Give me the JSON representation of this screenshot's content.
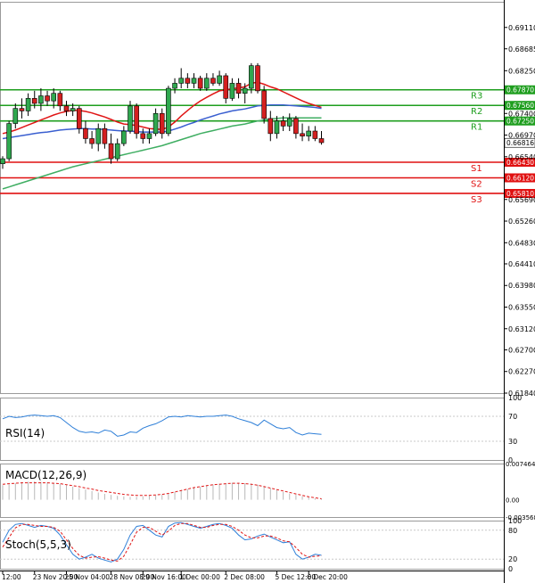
{
  "chart_data": [
    {
      "name": "price",
      "type": "candlestick",
      "ylim": [
        0.6184,
        0.6962
      ],
      "y_ticks": [
        0.6911,
        0.68685,
        0.6825,
        0.674,
        0.6697,
        0.6654,
        0.6569,
        0.6526,
        0.6483,
        0.6441,
        0.6398,
        0.6355,
        0.6312,
        0.627,
        0.6227,
        0.6184
      ],
      "y_tick_labels": [
        "0.69110",
        "0.68685",
        "0.68250",
        "0.67400",
        "0.66970",
        "0.66540",
        "0.65690",
        "0.65260",
        "0.64830",
        "0.64410",
        "0.63980",
        "0.63550",
        "0.63120",
        "0.62700",
        "0.62270",
        "0.61840"
      ],
      "current_price": 0.66816,
      "current_price_label": "0.66816",
      "levels": [
        {
          "name": "R3",
          "value": 0.6787,
          "label": "0.67870",
          "color": "#1e9e1e"
        },
        {
          "name": "R2",
          "value": 0.6756,
          "label": "0.67560",
          "color": "#1e9e1e"
        },
        {
          "name": "R1",
          "value": 0.6725,
          "label": "0.67250",
          "color": "#1e9e1e"
        },
        {
          "name": "S1",
          "value": 0.6643,
          "label": "0.66430",
          "color": "#e01010"
        },
        {
          "name": "S2",
          "value": 0.6612,
          "label": "0.66120",
          "color": "#e01010"
        },
        {
          "name": "S3",
          "value": 0.6581,
          "label": "0.65810",
          "color": "#e01010"
        }
      ],
      "candles": [
        [
          0.664,
          0.6655,
          0.663,
          0.665
        ],
        [
          0.665,
          0.6725,
          0.6645,
          0.672
        ],
        [
          0.672,
          0.676,
          0.671,
          0.675
        ],
        [
          0.675,
          0.677,
          0.673,
          0.6745
        ],
        [
          0.6745,
          0.678,
          0.6735,
          0.677
        ],
        [
          0.677,
          0.6785,
          0.675,
          0.676
        ],
        [
          0.676,
          0.679,
          0.6745,
          0.6775
        ],
        [
          0.6775,
          0.6785,
          0.6755,
          0.6765
        ],
        [
          0.6765,
          0.679,
          0.675,
          0.678
        ],
        [
          0.678,
          0.6785,
          0.6745,
          0.6755
        ],
        [
          0.6755,
          0.6765,
          0.6735,
          0.6745
        ],
        [
          0.6745,
          0.676,
          0.6735,
          0.675
        ],
        [
          0.675,
          0.6755,
          0.67,
          0.671
        ],
        [
          0.671,
          0.6725,
          0.668,
          0.669
        ],
        [
          0.669,
          0.6705,
          0.667,
          0.668
        ],
        [
          0.668,
          0.672,
          0.6665,
          0.671
        ],
        [
          0.671,
          0.672,
          0.667,
          0.668
        ],
        [
          0.668,
          0.67,
          0.664,
          0.665
        ],
        [
          0.665,
          0.669,
          0.6645,
          0.668
        ],
        [
          0.668,
          0.6715,
          0.6675,
          0.6705
        ],
        [
          0.6705,
          0.6765,
          0.67,
          0.6755
        ],
        [
          0.6755,
          0.676,
          0.669,
          0.67
        ],
        [
          0.67,
          0.671,
          0.668,
          0.669
        ],
        [
          0.669,
          0.671,
          0.668,
          0.67
        ],
        [
          0.67,
          0.675,
          0.6695,
          0.674
        ],
        [
          0.674,
          0.675,
          0.669,
          0.67
        ],
        [
          0.67,
          0.6795,
          0.6695,
          0.679
        ],
        [
          0.679,
          0.681,
          0.678,
          0.68
        ],
        [
          0.68,
          0.683,
          0.679,
          0.681
        ],
        [
          0.681,
          0.682,
          0.679,
          0.68
        ],
        [
          0.68,
          0.682,
          0.679,
          0.681
        ],
        [
          0.681,
          0.6815,
          0.6785,
          0.679
        ],
        [
          0.679,
          0.682,
          0.6785,
          0.681
        ],
        [
          0.681,
          0.682,
          0.6795,
          0.68
        ],
        [
          0.68,
          0.6825,
          0.6795,
          0.6815
        ],
        [
          0.6815,
          0.682,
          0.676,
          0.677
        ],
        [
          0.677,
          0.681,
          0.6765,
          0.68
        ],
        [
          0.68,
          0.681,
          0.677,
          0.678
        ],
        [
          0.678,
          0.68,
          0.676,
          0.679
        ],
        [
          0.679,
          0.684,
          0.678,
          0.6835
        ],
        [
          0.6835,
          0.684,
          0.678,
          0.6785
        ],
        [
          0.6785,
          0.6795,
          0.672,
          0.673
        ],
        [
          0.673,
          0.6745,
          0.6685,
          0.67
        ],
        [
          0.67,
          0.6735,
          0.669,
          0.6725
        ],
        [
          0.6725,
          0.6735,
          0.6705,
          0.6715
        ],
        [
          0.6715,
          0.674,
          0.6705,
          0.673
        ],
        [
          0.673,
          0.6735,
          0.669,
          0.67
        ],
        [
          0.67,
          0.672,
          0.6685,
          0.6695
        ],
        [
          0.6695,
          0.6715,
          0.6685,
          0.6705
        ],
        [
          0.6705,
          0.6715,
          0.6685,
          0.669
        ],
        [
          0.669,
          0.6705,
          0.6678,
          0.6682
        ]
      ],
      "moving_averages": [
        {
          "name": "MA red",
          "color": "#e01515",
          "values": [
            0.67,
            0.6703,
            0.6707,
            0.6712,
            0.6717,
            0.6722,
            0.6727,
            0.6732,
            0.6737,
            0.6741,
            0.6744,
            0.6746,
            0.6746,
            0.6744,
            0.6741,
            0.6737,
            0.6733,
            0.6728,
            0.6723,
            0.6719,
            0.6718,
            0.6716,
            0.6713,
            0.671,
            0.6709,
            0.6708,
            0.6713,
            0.6723,
            0.6735,
            0.6746,
            0.6756,
            0.6765,
            0.6772,
            0.6779,
            0.6785,
            0.6787,
            0.6789,
            0.6791,
            0.6793,
            0.68,
            0.6802,
            0.6798,
            0.6793,
            0.6789,
            0.6783,
            0.6777,
            0.6771,
            0.6765,
            0.676,
            0.6756,
            0.6752
          ]
        },
        {
          "name": "MA blue",
          "color": "#3a5fd0",
          "values": [
            0.669,
            0.6692,
            0.6694,
            0.6696,
            0.6698,
            0.67,
            0.6702,
            0.6703,
            0.6705,
            0.6707,
            0.6708,
            0.6709,
            0.671,
            0.671,
            0.6709,
            0.6709,
            0.6708,
            0.6707,
            0.6706,
            0.6705,
            0.6705,
            0.6704,
            0.6703,
            0.6703,
            0.6703,
            0.6703,
            0.6705,
            0.6709,
            0.6713,
            0.6718,
            0.6722,
            0.6727,
            0.6731,
            0.6735,
            0.6739,
            0.6742,
            0.6745,
            0.6747,
            0.6749,
            0.6752,
            0.6755,
            0.6756,
            0.6757,
            0.6757,
            0.6757,
            0.6756,
            0.6755,
            0.6754,
            0.6753,
            0.6752,
            0.675
          ]
        },
        {
          "name": "MA green",
          "color": "#3fae62",
          "values": [
            0.659,
            0.6594,
            0.6598,
            0.6602,
            0.6606,
            0.661,
            0.6614,
            0.6618,
            0.6622,
            0.6626,
            0.663,
            0.6634,
            0.6637,
            0.664,
            0.6643,
            0.6646,
            0.6649,
            0.6652,
            0.6655,
            0.6658,
            0.6661,
            0.6664,
            0.6667,
            0.667,
            0.6673,
            0.6676,
            0.668,
            0.6684,
            0.6688,
            0.6692,
            0.6696,
            0.67,
            0.6703,
            0.6706,
            0.6709,
            0.6712,
            0.6715,
            0.6717,
            0.6719,
            0.6722,
            0.6725,
            0.6727,
            0.6729,
            0.673,
            0.6731,
            0.6731,
            0.6731,
            0.6731,
            0.6731,
            0.6731,
            0.6731
          ]
        }
      ]
    },
    {
      "name": "RSI(14)",
      "type": "line",
      "title": "RSI(14)",
      "ylim": [
        0,
        100
      ],
      "y_ticks": [
        100,
        70,
        30,
        0
      ],
      "y_tick_labels": [
        "100",
        "70",
        "30",
        "0"
      ],
      "color": "#2e7fd8",
      "values": [
        66,
        70,
        68,
        69,
        71,
        72,
        71,
        70,
        71,
        68,
        60,
        52,
        46,
        44,
        45,
        43,
        48,
        46,
        38,
        40,
        45,
        44,
        51,
        55,
        58,
        63,
        69,
        70,
        69,
        71,
        70,
        69,
        70,
        70,
        71,
        72,
        70,
        66,
        63,
        60,
        55,
        64,
        58,
        52,
        50,
        52,
        44,
        40,
        43,
        42,
        41
      ]
    },
    {
      "name": "MACD(12,26,9)",
      "type": "bar+line",
      "title": "MACD(12,26,9)",
      "y_ticks": [
        0.007464,
        0.0,
        -0.003568
      ],
      "y_tick_labels": [
        "0.007464",
        "0.00",
        "-0.003568"
      ],
      "ylim": [
        -0.003568,
        0.007464
      ],
      "bar_color": "#b8b8b8",
      "signal_color": "#e01515",
      "histogram": [
        0.003,
        0.0032,
        0.0034,
        0.0036,
        0.0037,
        0.0038,
        0.0037,
        0.0036,
        0.0035,
        0.0033,
        0.003,
        0.0027,
        0.0024,
        0.0021,
        0.0018,
        0.0015,
        0.0012,
        0.001,
        0.0008,
        0.0007,
        0.0006,
        0.0006,
        0.0007,
        0.0008,
        0.0009,
        0.001,
        0.0013,
        0.0016,
        0.0019,
        0.0022,
        0.0025,
        0.0027,
        0.0029,
        0.0031,
        0.0033,
        0.0034,
        0.0035,
        0.0035,
        0.0034,
        0.0033,
        0.0031,
        0.0028,
        0.0024,
        0.002,
        0.0016,
        0.0013,
        0.001,
        0.0007,
        0.0005,
        0.0003,
        0.0002
      ],
      "signal": [
        0.0032,
        0.0033,
        0.0034,
        0.0035,
        0.0035,
        0.0035,
        0.0035,
        0.0035,
        0.0034,
        0.0033,
        0.0031,
        0.0029,
        0.0027,
        0.0024,
        0.0022,
        0.0019,
        0.0017,
        0.0015,
        0.0013,
        0.0011,
        0.001,
        0.0009,
        0.0009,
        0.0009,
        0.001,
        0.0011,
        0.0013,
        0.0016,
        0.0019,
        0.0022,
        0.0025,
        0.0027,
        0.0029,
        0.0031,
        0.0032,
        0.0033,
        0.0034,
        0.0034,
        0.0033,
        0.0032,
        0.003,
        0.0027,
        0.0024,
        0.0021,
        0.0018,
        0.0015,
        0.0012,
        0.0009,
        0.0006,
        0.0004,
        0.0002
      ]
    },
    {
      "name": "Stoch(5,5,3)",
      "type": "line",
      "title": "Stoch(5,5,3)",
      "ylim": [
        0,
        100
      ],
      "y_ticks": [
        100,
        80,
        20,
        0
      ],
      "y_tick_labels": [
        "100",
        "80",
        "20",
        "0"
      ],
      "main_color": "#2e7fd8",
      "signal_color": "#e01515",
      "main": [
        55,
        80,
        92,
        94,
        90,
        86,
        90,
        88,
        84,
        70,
        50,
        30,
        20,
        24,
        30,
        22,
        18,
        14,
        20,
        40,
        70,
        88,
        90,
        80,
        70,
        66,
        88,
        95,
        96,
        92,
        88,
        84,
        88,
        92,
        94,
        90,
        84,
        70,
        60,
        62,
        68,
        72,
        66,
        60,
        54,
        56,
        30,
        20,
        24,
        30,
        28
      ],
      "signal": [
        45,
        65,
        85,
        92,
        92,
        90,
        88,
        88,
        86,
        78,
        60,
        42,
        28,
        22,
        24,
        25,
        22,
        18,
        16,
        26,
        50,
        76,
        86,
        86,
        78,
        70,
        78,
        90,
        94,
        94,
        90,
        86,
        86,
        90,
        92,
        92,
        88,
        80,
        70,
        64,
        64,
        68,
        68,
        64,
        58,
        56,
        44,
        30,
        24,
        26,
        27
      ]
    }
  ],
  "x_axis": {
    "labels": [
      "12:00",
      "23 Nov 20:00",
      "25 Nov 04:00",
      "28 Nov 08:00",
      "29 Nov 16:00",
      "1 Dec 00:00",
      "2 Dec 08:00",
      "5 Dec 12:00",
      "6 Dec 20:00"
    ],
    "label_candle_index": [
      0,
      5,
      10,
      17,
      22,
      28,
      35,
      43,
      48
    ]
  }
}
